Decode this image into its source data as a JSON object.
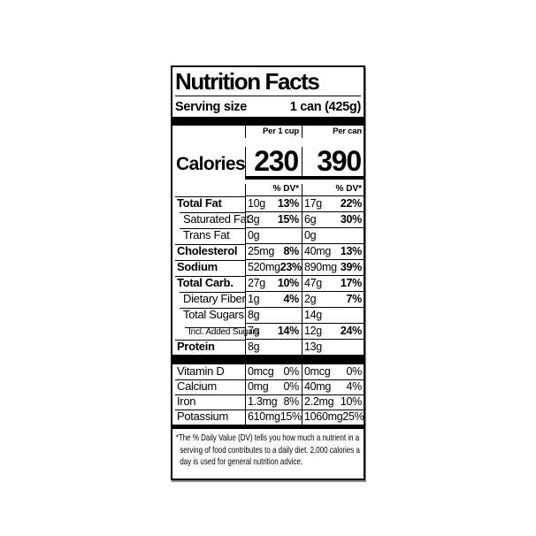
{
  "label": {
    "title": "Nutrition Facts",
    "serving": {
      "label": "Serving size",
      "value": "1 can (425g)"
    },
    "columns": {
      "per_cup": "Per 1 cup",
      "per_can": "Per can"
    },
    "calories": {
      "label": "Calories",
      "per_cup": "230",
      "per_can": "390"
    },
    "dv_header": "% DV*",
    "rows": [
      {
        "name": "Total Fat",
        "cup_amt": "10g",
        "cup_dv": "13%",
        "can_amt": "17g",
        "can_dv": "22%"
      },
      {
        "name": "Saturated Fat",
        "cup_amt": "3g",
        "cup_dv": "15%",
        "can_amt": "6g",
        "can_dv": "30%"
      },
      {
        "name": "Trans Fat",
        "cup_amt": "0g",
        "cup_dv": "",
        "can_amt": "0g",
        "can_dv": ""
      },
      {
        "name": "Cholesterol",
        "cup_amt": "25mg",
        "cup_dv": "8%",
        "can_amt": "40mg",
        "can_dv": "13%"
      },
      {
        "name": "Sodium",
        "cup_amt": "520mg",
        "cup_dv": "23%",
        "can_amt": "890mg",
        "can_dv": "39%"
      },
      {
        "name": "Total Carb.",
        "cup_amt": "27g",
        "cup_dv": "10%",
        "can_amt": "47g",
        "can_dv": "17%"
      },
      {
        "name": "Dietary Fiber",
        "cup_amt": "1g",
        "cup_dv": "4%",
        "can_amt": "2g",
        "can_dv": "7%"
      },
      {
        "name": "Total Sugars",
        "cup_amt": "8g",
        "cup_dv": "",
        "can_amt": "14g",
        "can_dv": ""
      },
      {
        "name": "Incl. Added Sugars",
        "cup_amt": "7g",
        "cup_dv": "14%",
        "can_amt": "12g",
        "can_dv": "24%"
      },
      {
        "name": "Protein",
        "cup_amt": "8g",
        "cup_dv": "",
        "can_amt": "13g",
        "can_dv": ""
      }
    ],
    "vitamin_rows": [
      {
        "name": "Vitamin D",
        "cup_amt": "0mcg",
        "cup_dv": "0%",
        "can_amt": "0mcg",
        "can_dv": "0%"
      },
      {
        "name": "Calcium",
        "cup_amt": "0mg",
        "cup_dv": "0%",
        "can_amt": "40mg",
        "can_dv": "4%"
      },
      {
        "name": "Iron",
        "cup_amt": "1.3mg",
        "cup_dv": "8%",
        "can_amt": "2.2mg",
        "can_dv": "10%"
      },
      {
        "name": "Potassium",
        "cup_amt": "610mg",
        "cup_dv": "15%",
        "can_amt": "1060mg",
        "can_dv": "25%"
      }
    ],
    "footnote": "*The % Daily Value (DV) tells you how much a nutrient in a serving of food contributes to a daily diet. 2,000 calories a day is used for general nutrition advice."
  }
}
